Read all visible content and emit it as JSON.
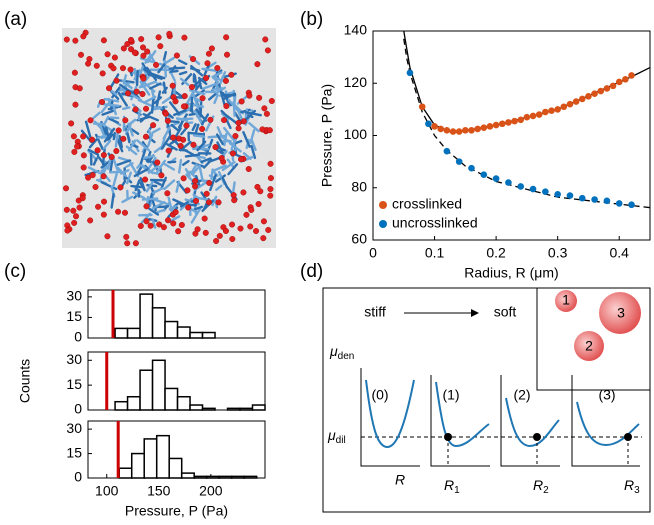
{
  "panels": {
    "a": "(a)",
    "b": "(b)",
    "c": "(c)",
    "d": "(d)"
  },
  "chart_data": [
    {
      "type": "scatter",
      "xlabel": "Radius, R (μm)",
      "ylabel": "Pressure, P (Pa)",
      "xlim": [
        0,
        0.45
      ],
      "ylim": [
        60,
        140
      ],
      "xticks": [
        0,
        0.1,
        0.2,
        0.3,
        0.4
      ],
      "yticks": [
        60,
        80,
        100,
        120,
        140
      ],
      "legend": "lower left",
      "series": [
        {
          "mode": "line",
          "style": "solid",
          "color": "#000000",
          "x": [
            0.05,
            0.06,
            0.08,
            0.1,
            0.13,
            0.2,
            0.3,
            0.42,
            0.45
          ],
          "values": [
            140,
            126,
            111,
            104,
            101,
            104,
            110,
            122.5,
            126
          ]
        },
        {
          "mode": "line",
          "style": "dashed",
          "color": "#000000",
          "x": [
            0.05,
            0.055,
            0.06,
            0.08,
            0.1,
            0.12,
            0.15,
            0.2,
            0.3,
            0.45
          ],
          "values": [
            137,
            129.4,
            124,
            109,
            100,
            94.3,
            88.3,
            82.4,
            76.4,
            72.4
          ]
        },
        {
          "mode": "markers",
          "name": "crosslinked",
          "color": "#d95319",
          "x": [
            0.08,
            0.1,
            0.11,
            0.12,
            0.13,
            0.14,
            0.15,
            0.16,
            0.17,
            0.18,
            0.19,
            0.2,
            0.21,
            0.22,
            0.23,
            0.24,
            0.25,
            0.26,
            0.27,
            0.28,
            0.29,
            0.3,
            0.31,
            0.32,
            0.33,
            0.34,
            0.35,
            0.36,
            0.37,
            0.38,
            0.39,
            0.4,
            0.41,
            0.42
          ],
          "values": [
            111,
            103.5,
            102.5,
            102,
            101.5,
            101.5,
            102,
            102,
            102.5,
            103,
            103.5,
            104,
            104.5,
            105,
            105.5,
            106,
            107,
            107.5,
            108,
            109,
            109.5,
            110,
            111,
            112,
            113,
            114,
            115,
            116,
            117,
            118,
            119,
            120.5,
            121.5,
            123
          ]
        },
        {
          "mode": "markers",
          "name": "uncrosslinked",
          "color": "#0072bd",
          "x": [
            0.06,
            0.09,
            0.12,
            0.14,
            0.16,
            0.18,
            0.2,
            0.22,
            0.24,
            0.26,
            0.28,
            0.3,
            0.32,
            0.34,
            0.36,
            0.38,
            0.4,
            0.42
          ],
          "values": [
            124,
            104.5,
            94,
            90,
            87.5,
            85,
            83.5,
            82,
            80.5,
            79.5,
            78.5,
            77.5,
            77,
            76,
            75.5,
            75,
            74,
            73.5
          ]
        }
      ]
    },
    {
      "type": "histogram",
      "xlim": [
        82,
        252
      ],
      "ylim": [
        0,
        35
      ],
      "yticks": [
        0,
        15,
        30
      ],
      "color": "#000000",
      "bins": [
        108,
        120,
        132,
        144,
        156,
        168,
        180,
        192,
        204
      ],
      "values": [
        7,
        7,
        32,
        22,
        12,
        8,
        4,
        4
      ],
      "reference_line": {
        "value": 106,
        "color": "#cc0000"
      }
    },
    {
      "type": "histogram",
      "xlim": [
        82,
        252
      ],
      "ylim": [
        0,
        35
      ],
      "yticks": [
        0,
        15,
        30
      ],
      "color": "#000000",
      "ylabel": "Counts",
      "bins": [
        108,
        120,
        132,
        144,
        156,
        168,
        180,
        192,
        204,
        216,
        228,
        240,
        252
      ],
      "values": [
        5,
        8,
        24,
        30,
        13,
        8,
        3,
        1,
        0,
        1,
        1,
        3
      ],
      "reference_line": {
        "value": 100,
        "color": "#cc0000"
      }
    },
    {
      "type": "histogram",
      "xlim": [
        82,
        252
      ],
      "ylim": [
        0,
        35
      ],
      "yticks": [
        0,
        15,
        30
      ],
      "xticks": [
        100,
        150,
        200
      ],
      "color": "#000000",
      "xlabel": "Pressure, P (Pa)",
      "bins": [
        112,
        124,
        136,
        148,
        160,
        172,
        184,
        196,
        208,
        220,
        232,
        244
      ],
      "values": [
        6,
        15,
        24,
        26,
        12,
        3,
        1,
        1,
        1,
        1,
        1
      ],
      "reference_line": {
        "value": 111,
        "color": "#cc0000"
      }
    }
  ],
  "diagram": {
    "stiff": "stiff",
    "soft": "soft",
    "mu_den": {
      "symbol": "μ",
      "sub": "den"
    },
    "mu_dil": {
      "symbol": "μ",
      "sub": "dil"
    },
    "stages": [
      "(0)",
      "(1)",
      "(2)",
      "(3)"
    ],
    "x_label": "R",
    "radii": [
      {
        "symbol": "R",
        "sub": "1"
      },
      {
        "symbol": "R",
        "sub": "2"
      },
      {
        "symbol": "R",
        "sub": "3"
      }
    ],
    "droplets": [
      "1",
      "2",
      "3"
    ]
  }
}
